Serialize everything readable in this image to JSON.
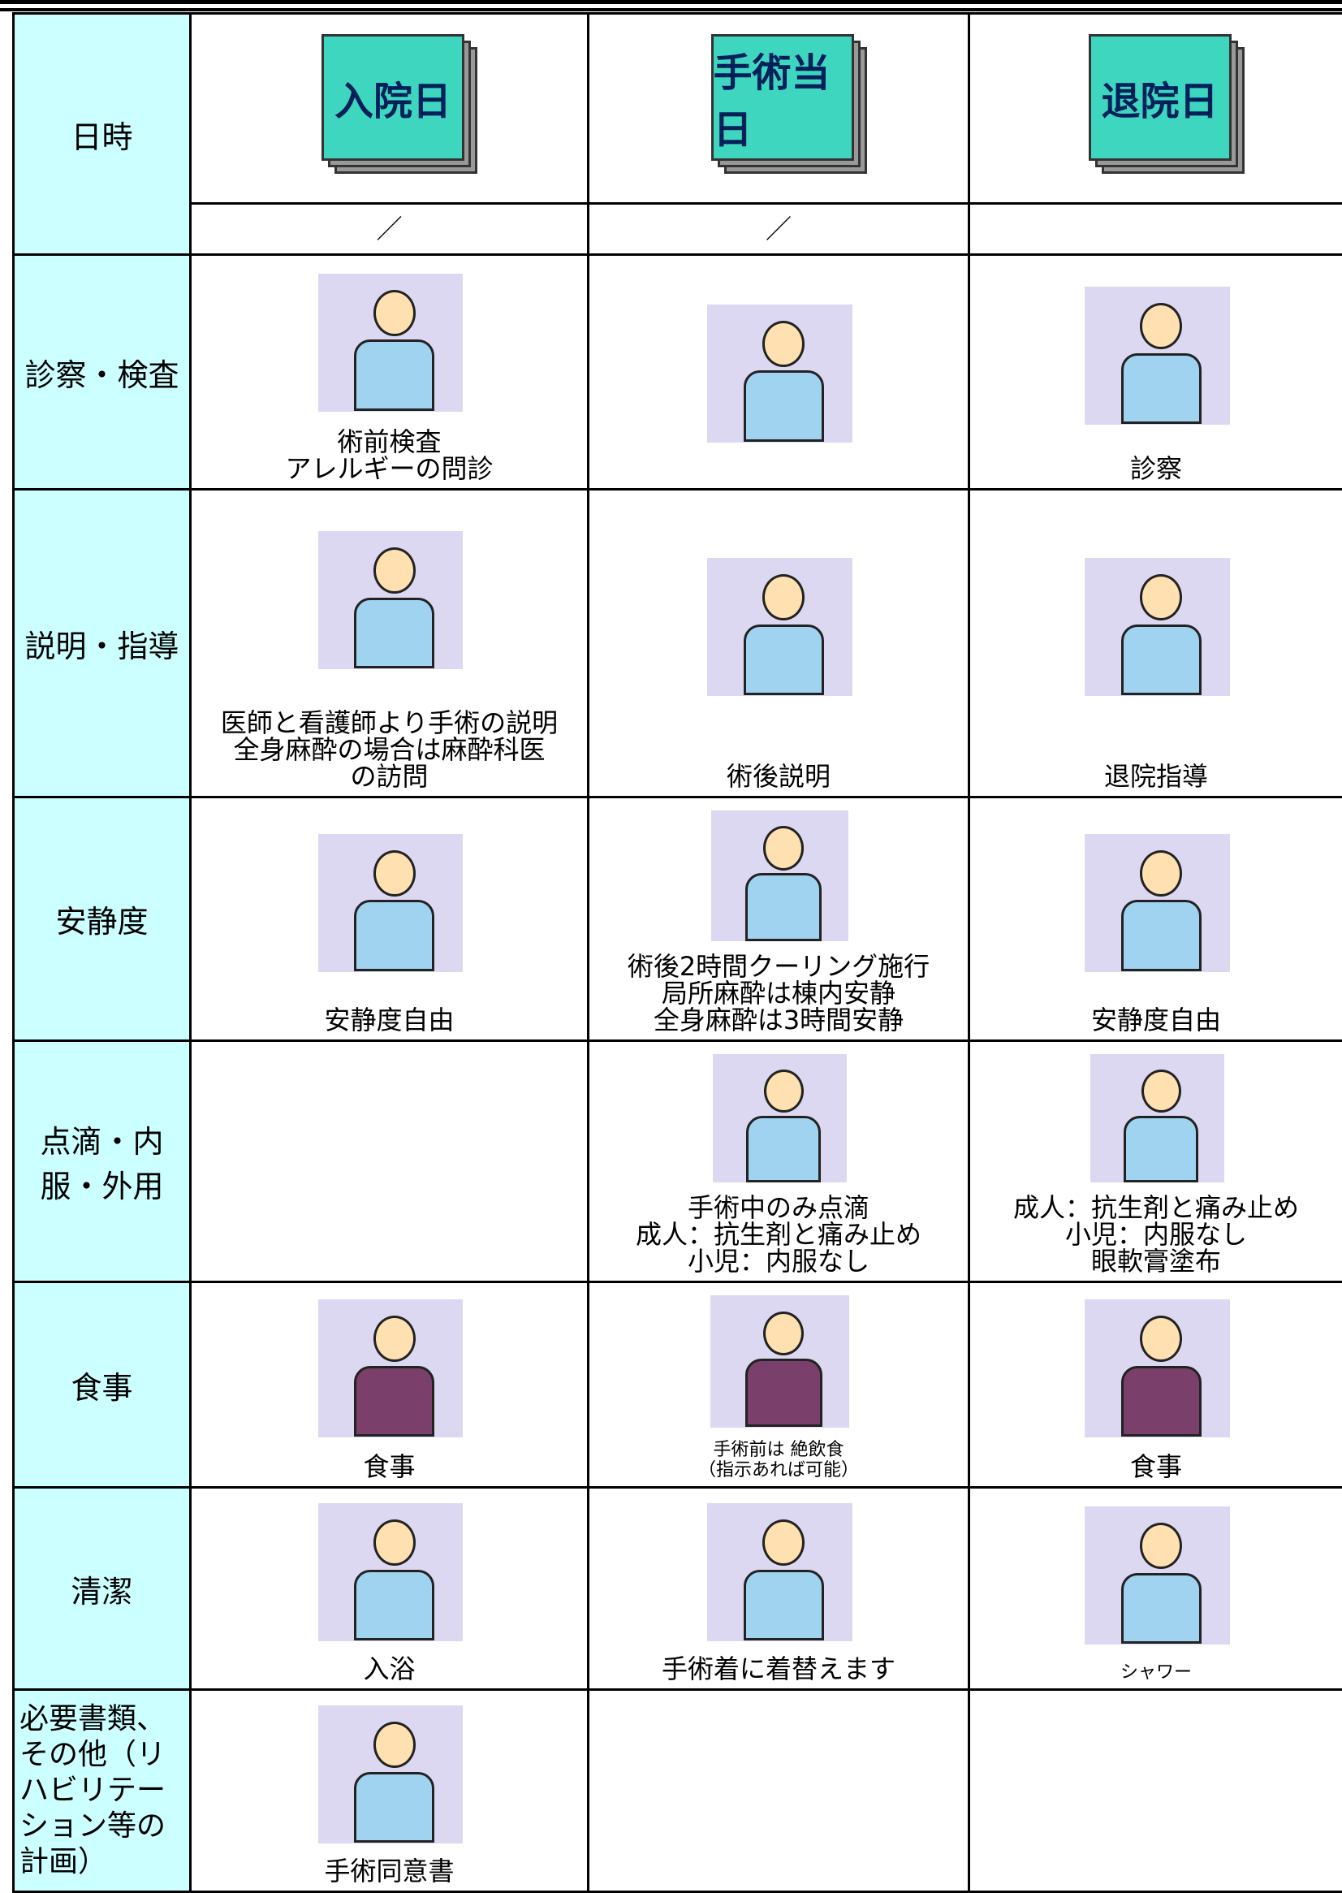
{
  "schedule": {
    "header_row": {
      "label": "日時",
      "days": [
        "入院日",
        "手術当日",
        "退院日"
      ],
      "dates": [
        "／",
        "／"
      ]
    },
    "rows": [
      {
        "label": "診察・検査",
        "cells": [
          [
            "術前検査",
            "アレルギーの問診"
          ],
          [],
          [
            "診察"
          ]
        ]
      },
      {
        "label": "説明・指導",
        "cells": [
          [
            "医師と看護師より手術の説明",
            "全身麻酔の場合は麻酔科医",
            "の訪問"
          ],
          [
            "術後説明"
          ],
          [
            "退院指導"
          ]
        ]
      },
      {
        "label": "安静度",
        "cells": [
          [
            "安静度自由"
          ],
          [
            "術後2時間クーリング施行",
            "局所麻酔は棟内安静",
            "全身麻酔は3時間安静"
          ],
          [
            "安静度自由"
          ]
        ]
      },
      {
        "label": "点滴・内服・外用",
        "cells": [
          [],
          [
            "手術中のみ点滴",
            "成人：抗生剤と痛み止め",
            "小児：内服なし"
          ],
          [
            "成人：抗生剤と痛み止め",
            "小児：内服なし",
            "眼軟膏塗布"
          ]
        ]
      },
      {
        "label": "食事",
        "cells": [
          [
            "食事"
          ],
          [
            "手術前は 絶飲食",
            "（指示あれば可能）"
          ],
          [
            "食事"
          ]
        ]
      },
      {
        "label": "清潔",
        "cells": [
          [
            "入浴"
          ],
          [
            "手術着に着替えます"
          ],
          [
            "シャワー"
          ]
        ]
      },
      {
        "label": "必要書類、その他（リハビリテーション等の計画）",
        "cells": [
          [
            "手術同意書"
          ],
          [],
          []
        ]
      }
    ]
  }
}
